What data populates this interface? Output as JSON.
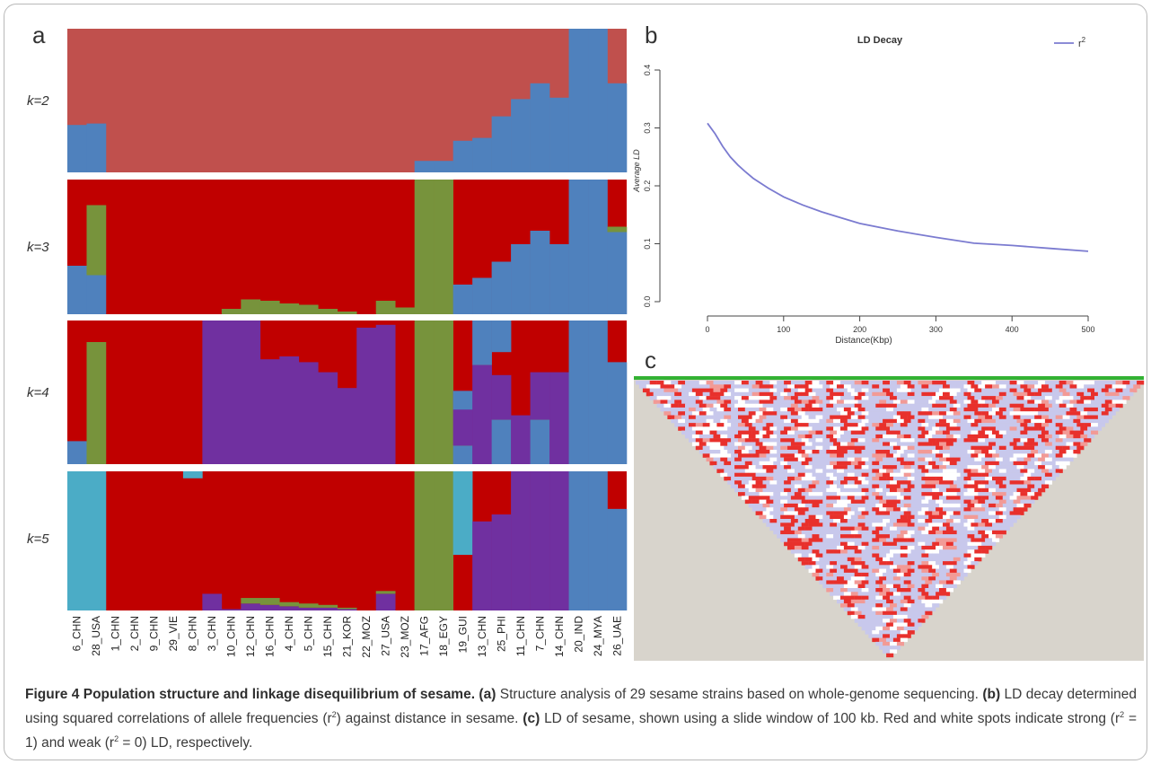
{
  "panel_a": {
    "label": "a",
    "k_labels": [
      "k=2",
      "k=3",
      "k=4",
      "k=5"
    ],
    "samples": [
      "6_CHN",
      "28_USA",
      "1_CHN",
      "2_CHN",
      "9_CHN",
      "29_VIE",
      "8_CHN",
      "3_CHN",
      "10_CHN",
      "12_CHN",
      "16_CHN",
      "4_CHN",
      "5_CHN",
      "15_CHN",
      "21_KOR",
      "22_MOZ",
      "27_USA",
      "23_MOZ",
      "17_AFG",
      "18_EGY",
      "19_GUI",
      "13_CHN",
      "25_PHI",
      "11_CHN",
      "7_CHN",
      "14_CHN",
      "20_IND",
      "24_MYA",
      "26_UAE"
    ],
    "colors": {
      "red2": "#c0504d",
      "red": "#c00000",
      "blue": "#4f81bd",
      "green": "#77933c",
      "purple": "#7030a0",
      "cyan": "#4bacc6"
    },
    "k2": {
      "blue": [
        0.33,
        0.34,
        0,
        0,
        0,
        0,
        0,
        0,
        0,
        0,
        0,
        0,
        0,
        0,
        0,
        0,
        0,
        0,
        0.08,
        0.08,
        0.22,
        0.24,
        0.39,
        0.51,
        0.62,
        0.52,
        1,
        1,
        0.62
      ]
    },
    "k3": {
      "blue": [
        0.36,
        0.29,
        0,
        0,
        0,
        0,
        0,
        0,
        0,
        0,
        0,
        0,
        0,
        0,
        0,
        0,
        0,
        0,
        0,
        0,
        0.22,
        0.27,
        0.39,
        0.52,
        0.62,
        0.52,
        1,
        1,
        0.61
      ],
      "green": [
        0,
        0.52,
        0,
        0,
        0,
        0,
        0,
        0,
        0.04,
        0.11,
        0.1,
        0.08,
        0.07,
        0.04,
        0.02,
        0,
        0.1,
        0.05,
        1,
        1,
        0,
        0,
        0,
        0,
        0,
        0,
        0,
        0,
        0.04
      ]
    },
    "k4": {
      "blue": [
        0.16,
        0,
        0,
        0,
        0,
        0,
        0,
        0,
        0,
        0,
        0,
        0,
        0,
        0,
        0,
        0,
        0,
        0,
        0,
        0,
        0.13,
        0,
        0.31,
        0,
        0.31,
        0,
        1,
        1,
        0.71
      ],
      "purple": [
        0,
        0,
        0,
        0,
        0,
        0,
        0,
        1,
        1,
        1,
        0.73,
        0.75,
        0.71,
        0.64,
        0.53,
        0.95,
        0.97,
        0,
        0,
        0,
        0.38,
        0.69,
        0.31,
        0.34,
        0.33,
        0.64,
        0,
        0,
        0
      ],
      "green": [
        0,
        0.85,
        0,
        0,
        0,
        0,
        0,
        0,
        0,
        0,
        0,
        0,
        0,
        0,
        0,
        0,
        0,
        0,
        1,
        1,
        0,
        0,
        0,
        0,
        0,
        0,
        0,
        0,
        0
      ],
      "cap": [
        0,
        0,
        0,
        0,
        0,
        0,
        0,
        0,
        0,
        0,
        0,
        0,
        0,
        0,
        0,
        0,
        0,
        0,
        0,
        0,
        0,
        0.31,
        0.22,
        0,
        0,
        0,
        0,
        0,
        0
      ]
    },
    "k5": {
      "cyan": [
        1,
        1,
        0,
        0,
        0,
        0,
        0.05,
        0,
        0,
        0,
        0,
        0,
        0,
        0,
        0,
        0,
        0,
        0,
        0,
        0,
        0.6,
        0,
        0,
        0,
        0,
        0,
        0,
        0,
        0
      ],
      "purple": [
        0,
        0,
        0,
        0,
        0,
        0,
        0,
        0.12,
        0.01,
        0.05,
        0.04,
        0.03,
        0.02,
        0.02,
        0.01,
        0,
        0.12,
        0,
        0,
        0,
        0,
        0.64,
        0.69,
        1,
        1,
        1,
        0,
        0,
        0
      ],
      "green": [
        0,
        0,
        0,
        0,
        0,
        0,
        0,
        0,
        0,
        0.04,
        0.05,
        0.03,
        0.03,
        0.02,
        0.01,
        0,
        0.02,
        0,
        1,
        1,
        0,
        0,
        0,
        0,
        0,
        0,
        0,
        0,
        0
      ],
      "blue": [
        0,
        0,
        0,
        0,
        0,
        0,
        0,
        0,
        0,
        0,
        0,
        0,
        0,
        0,
        0,
        0,
        0,
        0,
        0,
        0,
        0,
        0,
        0,
        0,
        0,
        0,
        1,
        1,
        0.73
      ]
    }
  },
  "panel_b": {
    "label": "b",
    "chart_data": {
      "type": "line",
      "title": "LD Decay",
      "xlabel": "Distance(Kbp)",
      "ylabel": "Average LD",
      "xlim": [
        0,
        500
      ],
      "ylim": [
        0,
        0.4
      ],
      "xticks": [
        "0",
        "100",
        "200",
        "300",
        "400",
        "500"
      ],
      "yticks": [
        "0.0",
        "0.1",
        "0.2",
        "0.3",
        "0.4"
      ],
      "series": [
        {
          "name": "r2",
          "color": "#7b7bd0",
          "x": [
            0,
            10,
            20,
            30,
            40,
            50,
            60,
            80,
            100,
            125,
            150,
            175,
            200,
            250,
            300,
            350,
            400,
            450,
            500
          ],
          "y": [
            0.308,
            0.29,
            0.268,
            0.25,
            0.236,
            0.224,
            0.213,
            0.196,
            0.181,
            0.167,
            0.155,
            0.145,
            0.135,
            0.122,
            0.111,
            0.101,
            0.097,
            0.092,
            0.087
          ]
        }
      ]
    },
    "legend_label": "r",
    "legend_sup": "2"
  },
  "panel_c": {
    "label": "c",
    "colors": {
      "strong": "#e8302c",
      "weak": "#ffffff",
      "mid": "#f29a96",
      "lav": "#c8c8ec",
      "bg": "#d8d4cc",
      "track": "#33b233"
    }
  },
  "caption": {
    "title": "Figure 4 Population structure and linkage disequilibrium of sesame.",
    "a_label": "(a)",
    "a_text": "Structure analysis of 29 sesame strains based on whole-genome sequencing.",
    "b_label": "(b)",
    "b_text_1": "LD decay determined using squared correlations of allele frequencies (r",
    "b_sup": "2",
    "b_text_2": ") against distance in sesame.",
    "c_label": "(c)",
    "c_text_1": "LD of sesame, shown using a slide window of 100 kb. Red and white spots indicate strong (r",
    "c_sup1": "2",
    "c_text_2": " = 1) and weak (r",
    "c_sup2": "2",
    "c_text_3": " = 0) LD, respectively."
  }
}
